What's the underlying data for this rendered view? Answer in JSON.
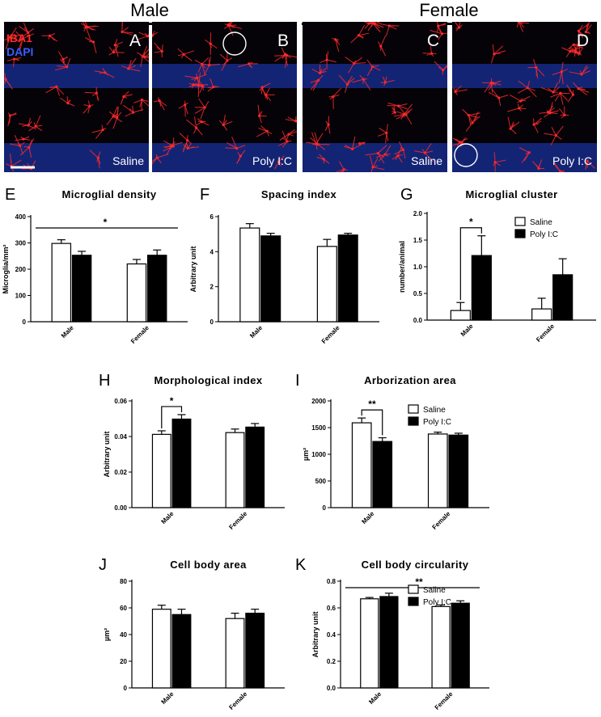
{
  "header": {
    "male": "Male",
    "female": "Female"
  },
  "micrographs": [
    {
      "letter": "A",
      "condition": "Saline",
      "channel1": "IBA1",
      "channel2": "DAPI",
      "has_circle": false
    },
    {
      "letter": "B",
      "condition": "Poly I:C",
      "has_circle": true
    },
    {
      "letter": "C",
      "condition": "Saline",
      "has_circle": false
    },
    {
      "letter": "D",
      "condition": "Poly I:C",
      "has_circle": true
    }
  ],
  "colors": {
    "iba1": "#ff2a2a",
    "dapi": "#2040d0",
    "saline_fill": "#ffffff",
    "polyic_fill": "#000000"
  },
  "legend": {
    "saline": "Saline",
    "polyic": "Poly I:C"
  },
  "chart_data": [
    {
      "panel": "E",
      "type": "bar",
      "title": "Microglial density",
      "ylabel": "Microglia/mm²",
      "ylim": [
        0,
        400
      ],
      "yticks": [
        "0",
        "100",
        "200",
        "300",
        "400"
      ],
      "categories": [
        "Male",
        "Female"
      ],
      "series": [
        {
          "name": "Saline",
          "values": [
            298,
            220
          ],
          "errors": [
            14,
            17
          ]
        },
        {
          "name": "Poly I:C",
          "values": [
            253,
            253
          ],
          "errors": [
            15,
            20
          ]
        }
      ],
      "significance": [
        {
          "type": "sex",
          "label": "*"
        }
      ],
      "legend": false
    },
    {
      "panel": "F",
      "type": "bar",
      "title": "Spacing index",
      "ylabel": "Arbitrary unit",
      "ylim": [
        0,
        6
      ],
      "yticks": [
        "0",
        "2",
        "4",
        "6"
      ],
      "categories": [
        "Male",
        "Female"
      ],
      "series": [
        {
          "name": "Saline",
          "values": [
            5.35,
            4.3
          ],
          "errors": [
            0.25,
            0.4
          ]
        },
        {
          "name": "Poly I:C",
          "values": [
            4.9,
            4.95
          ],
          "errors": [
            0.15,
            0.1
          ]
        }
      ],
      "significance": [],
      "legend": false
    },
    {
      "panel": "G",
      "type": "bar",
      "title": "Microglial cluster",
      "ylabel": "number/animal",
      "ylim": [
        0,
        2.0
      ],
      "yticks": [
        "0.0",
        "0.5",
        "1.0",
        "1.5",
        "2.0"
      ],
      "categories": [
        "Male",
        "Female"
      ],
      "series": [
        {
          "name": "Saline",
          "values": [
            0.18,
            0.21
          ],
          "errors": [
            0.15,
            0.2
          ]
        },
        {
          "name": "Poly I:C",
          "values": [
            1.21,
            0.85
          ],
          "errors": [
            0.37,
            0.3
          ]
        }
      ],
      "significance": [
        {
          "type": "male",
          "label": "*"
        }
      ],
      "legend": true
    },
    {
      "panel": "H",
      "type": "bar",
      "title": "Morphological index",
      "ylabel": "Arbitrary unit",
      "ylim": [
        0,
        0.06
      ],
      "yticks": [
        "0.00",
        "0.02",
        "0.04",
        "0.06"
      ],
      "categories": [
        "Male",
        "Female"
      ],
      "series": [
        {
          "name": "Saline",
          "values": [
            0.0412,
            0.0422
          ],
          "errors": [
            0.002,
            0.002
          ]
        },
        {
          "name": "Poly I:C",
          "values": [
            0.0498,
            0.0453
          ],
          "errors": [
            0.0025,
            0.002
          ]
        }
      ],
      "significance": [
        {
          "type": "male",
          "label": "*"
        }
      ],
      "legend": false
    },
    {
      "panel": "I",
      "type": "bar",
      "title": "Arborization area",
      "ylabel": "µm²",
      "ylim": [
        0,
        2000
      ],
      "yticks": [
        "0",
        "500",
        "1000",
        "1500",
        "2000"
      ],
      "categories": [
        "Male",
        "Female"
      ],
      "series": [
        {
          "name": "Saline",
          "values": [
            1590,
            1380
          ],
          "errors": [
            90,
            35
          ]
        },
        {
          "name": "Poly I:C",
          "values": [
            1240,
            1360
          ],
          "errors": [
            70,
            35
          ]
        }
      ],
      "significance": [
        {
          "type": "male",
          "label": "**"
        }
      ],
      "legend": true
    },
    {
      "panel": "J",
      "type": "bar",
      "title": "Cell body area",
      "ylabel": "µm²",
      "ylim": [
        0,
        80
      ],
      "yticks": [
        "0",
        "20",
        "40",
        "60",
        "80"
      ],
      "categories": [
        "Male",
        "Female"
      ],
      "series": [
        {
          "name": "Saline",
          "values": [
            59,
            52
          ],
          "errors": [
            3,
            4
          ]
        },
        {
          "name": "Poly I:C",
          "values": [
            55,
            56
          ],
          "errors": [
            4,
            3
          ]
        }
      ],
      "significance": [],
      "legend": false
    },
    {
      "panel": "K",
      "type": "bar",
      "title": "Cell body circularity",
      "ylabel": "Arbitrary unit",
      "ylim": [
        0,
        0.8
      ],
      "yticks": [
        "0.0",
        "0.2",
        "0.4",
        "0.6",
        "0.8"
      ],
      "categories": [
        "Male",
        "Female"
      ],
      "series": [
        {
          "name": "Saline",
          "values": [
            0.668,
            0.61
          ],
          "errors": [
            0.01,
            0.012
          ]
        },
        {
          "name": "Poly I:C",
          "values": [
            0.685,
            0.635
          ],
          "errors": [
            0.025,
            0.018
          ]
        }
      ],
      "significance": [
        {
          "type": "sex",
          "label": "**"
        }
      ],
      "legend": true
    }
  ]
}
